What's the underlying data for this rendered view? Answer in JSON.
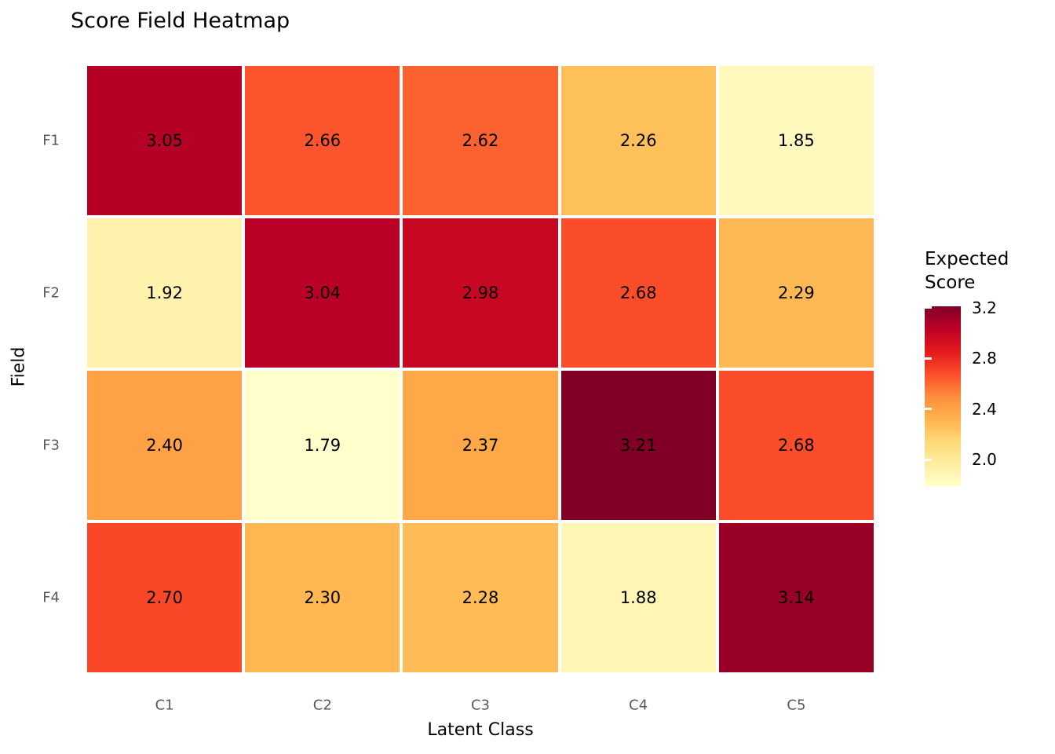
{
  "chart_data": {
    "type": "heatmap",
    "title": "Score Field Heatmap",
    "xlabel": "Latent Class",
    "ylabel": "Field",
    "categories_x": [
      "C1",
      "C2",
      "C3",
      "C4",
      "C5"
    ],
    "categories_y": [
      "F1",
      "F2",
      "F3",
      "F4"
    ],
    "values": [
      [
        3.05,
        2.66,
        2.62,
        2.26,
        1.85
      ],
      [
        1.92,
        3.04,
        2.98,
        2.68,
        2.29
      ],
      [
        2.4,
        1.79,
        2.37,
        3.21,
        2.68
      ],
      [
        2.7,
        2.3,
        2.28,
        1.88,
        3.14
      ]
    ],
    "value_decimals": 2,
    "legend": {
      "title": "Expected Score",
      "position": "right",
      "ticks": [
        {
          "value": 3.2,
          "label": "3.2"
        },
        {
          "value": 2.8,
          "label": "2.8"
        },
        {
          "value": 2.4,
          "label": "2.4"
        },
        {
          "value": 2.0,
          "label": "2.0"
        }
      ]
    },
    "colorscale": {
      "name": "YlOrRd",
      "domain": [
        1.79,
        3.21
      ],
      "stops": [
        "#ffffcc",
        "#ffeda0",
        "#fed976",
        "#feb24c",
        "#fd8d3c",
        "#fc4e2a",
        "#e31a1c",
        "#bd0026",
        "#800026"
      ]
    },
    "colors": {
      "background": "#ffffff",
      "cell_text": "#000000",
      "axis_tick_text": "#595959",
      "axis_title_text": "#000000",
      "grid_gap": "#ffffff"
    },
    "layout_hints": {
      "grid": "off",
      "cell_border": "white gap",
      "legend_position": "right"
    }
  }
}
